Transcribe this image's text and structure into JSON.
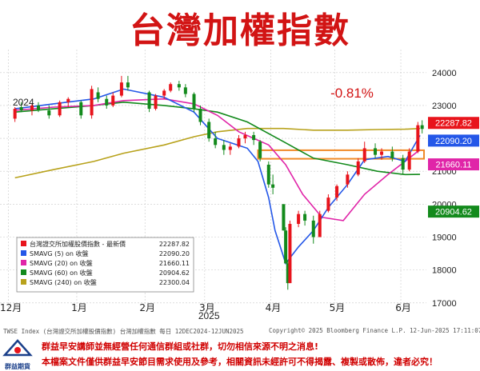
{
  "title": "台灣加權指數",
  "change_pct": "-0.81%",
  "chart_data": {
    "type": "candlestick",
    "ylim": [
      16800,
      24700
    ],
    "y_ticks": [
      "24000",
      "23000",
      "22000",
      "21000",
      "20000",
      "19000",
      "18000",
      "17000"
    ],
    "x_ticks": [
      "12月",
      "1月",
      "2月",
      "3月",
      "4月",
      "5月",
      "6月"
    ],
    "year_labels": [
      "2024",
      "2025"
    ],
    "right_labels": [
      {
        "text": "22287.82",
        "value": 22287.82,
        "color": "#e8141c"
      },
      {
        "text": "22090.20",
        "value": 22090.2,
        "color": "#2457e8"
      },
      {
        "text": "21660.11",
        "value": 21660.11,
        "color": "#e025a8"
      },
      {
        "text": "20904.62",
        "value": 20904.62,
        "color": "#138a1c"
      }
    ],
    "legend": [
      {
        "label": "台灣證交所加權股價指數 - 最新價",
        "value": "22287.82",
        "color": "#e8141c"
      },
      {
        "label": "SMAVG (5)  on 收盤",
        "value": "22090.20",
        "color": "#2457e8"
      },
      {
        "label": "SMAVG (20)  on 收盤",
        "value": "21660.11",
        "color": "#e025a8"
      },
      {
        "label": "SMAVG (60)  on 收盤",
        "value": "20904.62",
        "color": "#138a1c"
      },
      {
        "label": "SMAVG (240)  on 收盤",
        "value": "22300.04",
        "color": "#b8a21c"
      }
    ],
    "highlight_band": [
      21380,
      21640
    ],
    "series": [
      {
        "name": "SMAVG (5)",
        "color": "#2457e8",
        "points": [
          [
            "2024-12-02",
            22900
          ],
          [
            "2024-12-20",
            23050
          ],
          [
            "2025-01-08",
            23200
          ],
          [
            "2025-01-22",
            23500
          ],
          [
            "2025-02-10",
            23250
          ],
          [
            "2025-02-24",
            22800
          ],
          [
            "2025-03-07",
            22000
          ],
          [
            "2025-03-14",
            21850
          ],
          [
            "2025-03-21",
            21700
          ],
          [
            "2025-03-26",
            21300
          ],
          [
            "2025-03-31",
            20200
          ],
          [
            "2025-04-03",
            19200
          ],
          [
            "2025-04-08",
            18200
          ],
          [
            "2025-04-14",
            18700
          ],
          [
            "2025-04-21",
            19200
          ],
          [
            "2025-04-28",
            19900
          ],
          [
            "2025-05-07",
            20600
          ],
          [
            "2025-05-15",
            21350
          ],
          [
            "2025-05-26",
            21450
          ],
          [
            "2025-06-03",
            21300
          ],
          [
            "2025-06-10",
            22090
          ]
        ]
      },
      {
        "name": "SMAVG (20)",
        "color": "#e025a8",
        "points": [
          [
            "2024-12-02",
            22850
          ],
          [
            "2024-12-20",
            22950
          ],
          [
            "2025-01-08",
            23000
          ],
          [
            "2025-01-22",
            23150
          ],
          [
            "2025-02-10",
            23200
          ],
          [
            "2025-02-24",
            23050
          ],
          [
            "2025-03-07",
            22700
          ],
          [
            "2025-03-17",
            22200
          ],
          [
            "2025-03-31",
            21800
          ],
          [
            "2025-04-08",
            21200
          ],
          [
            "2025-04-16",
            20300
          ],
          [
            "2025-04-25",
            19600
          ],
          [
            "2025-05-05",
            19500
          ],
          [
            "2025-05-15",
            20300
          ],
          [
            "2025-05-26",
            20900
          ],
          [
            "2025-06-03",
            21300
          ],
          [
            "2025-06-10",
            21660
          ]
        ]
      },
      {
        "name": "SMAVG (60)",
        "color": "#138a1c",
        "points": [
          [
            "2024-12-02",
            22800
          ],
          [
            "2024-12-20",
            22900
          ],
          [
            "2025-01-08",
            23000
          ],
          [
            "2025-01-22",
            23100
          ],
          [
            "2025-02-10",
            23000
          ],
          [
            "2025-02-24",
            22900
          ],
          [
            "2025-03-07",
            22800
          ],
          [
            "2025-03-21",
            22500
          ],
          [
            "2025-04-07",
            21900
          ],
          [
            "2025-04-21",
            21400
          ],
          [
            "2025-05-07",
            21200
          ],
          [
            "2025-05-21",
            21000
          ],
          [
            "2025-06-03",
            20900
          ],
          [
            "2025-06-10",
            20905
          ]
        ]
      },
      {
        "name": "SMAVG (240)",
        "color": "#b8a21c",
        "points": [
          [
            "2024-12-02",
            20800
          ],
          [
            "2024-12-20",
            21050
          ],
          [
            "2025-01-08",
            21300
          ],
          [
            "2025-01-22",
            21550
          ],
          [
            "2025-02-10",
            21800
          ],
          [
            "2025-02-24",
            22050
          ],
          [
            "2025-03-07",
            22200
          ],
          [
            "2025-03-21",
            22300
          ],
          [
            "2025-04-07",
            22300
          ],
          [
            "2025-04-21",
            22250
          ],
          [
            "2025-05-07",
            22250
          ],
          [
            "2025-05-21",
            22270
          ],
          [
            "2025-06-03",
            22280
          ],
          [
            "2025-06-10",
            22300
          ]
        ]
      }
    ],
    "candles": [
      {
        "d": "2024-12-02",
        "o": 22600,
        "h": 22950,
        "l": 22500,
        "c": 22900
      },
      {
        "d": "2024-12-05",
        "o": 22950,
        "h": 23100,
        "l": 22800,
        "c": 22850
      },
      {
        "d": "2024-12-10",
        "o": 22850,
        "h": 23050,
        "l": 22700,
        "c": 23000
      },
      {
        "d": "2024-12-13",
        "o": 23000,
        "h": 23100,
        "l": 22800,
        "c": 22850
      },
      {
        "d": "2024-12-18",
        "o": 22850,
        "h": 23000,
        "l": 22600,
        "c": 22700
      },
      {
        "d": "2024-12-23",
        "o": 22700,
        "h": 23150,
        "l": 22650,
        "c": 23100
      },
      {
        "d": "2024-12-27",
        "o": 23100,
        "h": 23250,
        "l": 22950,
        "c": 23200
      },
      {
        "d": "2025-01-02",
        "o": 23100,
        "h": 23150,
        "l": 22600,
        "c": 22700
      },
      {
        "d": "2025-01-07",
        "o": 22700,
        "h": 23600,
        "l": 22600,
        "c": 23500
      },
      {
        "d": "2025-01-10",
        "o": 23400,
        "h": 23550,
        "l": 23100,
        "c": 23200
      },
      {
        "d": "2025-01-14",
        "o": 23200,
        "h": 23300,
        "l": 22900,
        "c": 23000
      },
      {
        "d": "2025-01-17",
        "o": 23000,
        "h": 23400,
        "l": 22950,
        "c": 23300
      },
      {
        "d": "2025-01-21",
        "o": 23300,
        "h": 23900,
        "l": 23250,
        "c": 23700
      },
      {
        "d": "2025-01-24",
        "o": 23700,
        "h": 23900,
        "l": 23450,
        "c": 23550
      },
      {
        "d": "2025-02-03",
        "o": 23400,
        "h": 23450,
        "l": 22800,
        "c": 22900
      },
      {
        "d": "2025-02-06",
        "o": 22900,
        "h": 23350,
        "l": 22850,
        "c": 23300
      },
      {
        "d": "2025-02-10",
        "o": 23300,
        "h": 23500,
        "l": 23200,
        "c": 23450
      },
      {
        "d": "2025-02-13",
        "o": 23450,
        "h": 23700,
        "l": 23400,
        "c": 23650
      },
      {
        "d": "2025-02-17",
        "o": 23650,
        "h": 23750,
        "l": 23450,
        "c": 23550
      },
      {
        "d": "2025-02-20",
        "o": 23550,
        "h": 23650,
        "l": 23250,
        "c": 23350
      },
      {
        "d": "2025-02-24",
        "o": 23350,
        "h": 23400,
        "l": 22800,
        "c": 22900
      },
      {
        "d": "2025-02-27",
        "o": 22900,
        "h": 23000,
        "l": 22400,
        "c": 22500
      },
      {
        "d": "2025-03-03",
        "o": 22500,
        "h": 22600,
        "l": 21900,
        "c": 22000
      },
      {
        "d": "2025-03-06",
        "o": 22000,
        "h": 22200,
        "l": 21700,
        "c": 21800
      },
      {
        "d": "2025-03-10",
        "o": 21800,
        "h": 21950,
        "l": 21500,
        "c": 21650
      },
      {
        "d": "2025-03-13",
        "o": 21650,
        "h": 21850,
        "l": 21500,
        "c": 21750
      },
      {
        "d": "2025-03-17",
        "o": 21750,
        "h": 22100,
        "l": 21700,
        "c": 22000
      },
      {
        "d": "2025-03-20",
        "o": 22000,
        "h": 22200,
        "l": 21850,
        "c": 22100
      },
      {
        "d": "2025-03-24",
        "o": 22100,
        "h": 22200,
        "l": 21800,
        "c": 21950
      },
      {
        "d": "2025-03-27",
        "o": 21900,
        "h": 21950,
        "l": 21300,
        "c": 21400
      },
      {
        "d": "2025-03-31",
        "o": 21200,
        "h": 21300,
        "l": 20500,
        "c": 20600
      },
      {
        "d": "2025-04-02",
        "o": 20600,
        "h": 20900,
        "l": 20300,
        "c": 20500
      },
      {
        "d": "2025-04-07",
        "o": 20000,
        "h": 20000,
        "l": 19200,
        "c": 19200
      },
      {
        "d": "2025-04-08",
        "o": 19200,
        "h": 19300,
        "l": 18200,
        "c": 18200
      },
      {
        "d": "2025-04-09",
        "o": 18200,
        "h": 18300,
        "l": 17400,
        "c": 17600
      },
      {
        "d": "2025-04-10",
        "o": 17600,
        "h": 19500,
        "l": 17600,
        "c": 19400
      },
      {
        "d": "2025-04-14",
        "o": 19400,
        "h": 19800,
        "l": 19300,
        "c": 19700
      },
      {
        "d": "2025-04-17",
        "o": 19700,
        "h": 19800,
        "l": 19350,
        "c": 19500
      },
      {
        "d": "2025-04-21",
        "o": 19500,
        "h": 19650,
        "l": 18800,
        "c": 19000
      },
      {
        "d": "2025-04-24",
        "o": 19000,
        "h": 19800,
        "l": 19000,
        "c": 19700
      },
      {
        "d": "2025-04-28",
        "o": 19800,
        "h": 20300,
        "l": 19750,
        "c": 20200
      },
      {
        "d": "2025-05-02",
        "o": 20200,
        "h": 20600,
        "l": 20100,
        "c": 20550
      },
      {
        "d": "2025-05-07",
        "o": 20600,
        "h": 21000,
        "l": 20500,
        "c": 20900
      },
      {
        "d": "2025-05-12",
        "o": 20900,
        "h": 21400,
        "l": 20850,
        "c": 21300
      },
      {
        "d": "2025-05-15",
        "o": 21300,
        "h": 21900,
        "l": 21250,
        "c": 21700
      },
      {
        "d": "2025-05-20",
        "o": 21700,
        "h": 21850,
        "l": 21400,
        "c": 21500
      },
      {
        "d": "2025-05-23",
        "o": 21500,
        "h": 21700,
        "l": 21350,
        "c": 21600
      },
      {
        "d": "2025-05-28",
        "o": 21600,
        "h": 21750,
        "l": 21300,
        "c": 21400
      },
      {
        "d": "2025-06-02",
        "o": 21400,
        "h": 21500,
        "l": 20900,
        "c": 21050
      },
      {
        "d": "2025-06-05",
        "o": 21050,
        "h": 21700,
        "l": 21000,
        "c": 21600
      },
      {
        "d": "2025-06-09",
        "o": 21600,
        "h": 22500,
        "l": 21550,
        "c": 22400
      },
      {
        "d": "2025-06-11",
        "o": 22400,
        "h": 22550,
        "l": 22150,
        "c": 22287.82
      }
    ],
    "x_tick_dates": [
      "2024-11-29",
      "2024-12-31",
      "2025-02-01",
      "2025-03-01",
      "2025-04-01",
      "2025-05-01",
      "2025-06-01"
    ],
    "year_label_dates": [
      "2024-12-06",
      "2025-03-03"
    ],
    "x_range": [
      "2024-11-25",
      "2025-06-13"
    ]
  },
  "footer": {
    "left": "TWSE Index (台灣證交所加權股價指數) 台灣加權指數  每日 12DEC2024-12JUN2025",
    "center": "Copyright© 2025 Bloomberg Finance L.P.",
    "right": "12-Jun-2025 17:11:07"
  },
  "logo_text": "群益期貨",
  "disclaimer": {
    "line1": "群益早安講師並無經營任何通信群組或社群，切勿相信來源不明之消息!",
    "line2": "本檔案文件僅供群益早安節目需求使用及參考，相關資訊未經許可不得揭露、複製或散佈，違者必究！"
  }
}
